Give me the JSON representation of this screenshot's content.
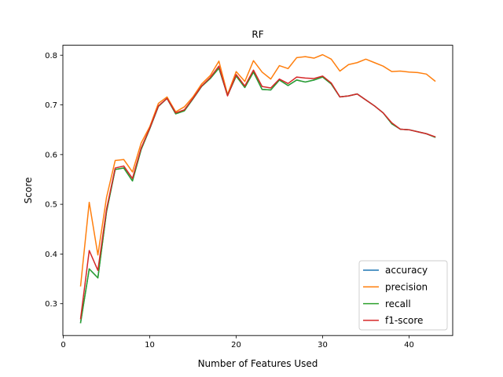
{
  "chart_data": {
    "type": "line",
    "title": "RF",
    "xlabel": "Number of Features Used",
    "ylabel": "Score",
    "xlim": [
      -0.05,
      45.05
    ],
    "ylim": [
      0.236,
      0.82
    ],
    "xticks": [
      0,
      10,
      20,
      30,
      40
    ],
    "yticks": [
      0.3,
      0.4,
      0.5,
      0.6,
      0.7,
      0.8
    ],
    "grid": false,
    "legend_position": "lower-right",
    "x": [
      2,
      3,
      4,
      5,
      6,
      7,
      8,
      9,
      10,
      11,
      12,
      13,
      14,
      15,
      16,
      17,
      18,
      19,
      20,
      21,
      22,
      23,
      24,
      25,
      26,
      27,
      28,
      29,
      30,
      31,
      32,
      33,
      34,
      35,
      36,
      37,
      38,
      39,
      40,
      41,
      42,
      43
    ],
    "series": [
      {
        "name": "accuracy",
        "color": "#1f77b4",
        "values": [
          0.262,
          0.37,
          0.352,
          0.485,
          0.57,
          0.573,
          0.547,
          0.61,
          0.652,
          0.697,
          0.713,
          0.682,
          0.688,
          0.712,
          0.737,
          0.753,
          0.774,
          0.719,
          0.758,
          0.735,
          0.766,
          0.731,
          0.73,
          0.75,
          0.739,
          0.75,
          0.746,
          0.75,
          0.756,
          0.742,
          0.716,
          0.718,
          0.722,
          0.71,
          0.698,
          0.684,
          0.662,
          0.651,
          0.65,
          0.646,
          0.642,
          0.635
        ]
      },
      {
        "name": "precision",
        "color": "#ff7f0e",
        "values": [
          0.336,
          0.504,
          0.398,
          0.514,
          0.588,
          0.59,
          0.565,
          0.623,
          0.656,
          0.703,
          0.716,
          0.686,
          0.696,
          0.716,
          0.742,
          0.759,
          0.788,
          0.721,
          0.767,
          0.747,
          0.789,
          0.766,
          0.752,
          0.779,
          0.773,
          0.795,
          0.797,
          0.794,
          0.801,
          0.792,
          0.768,
          0.781,
          0.785,
          0.792,
          0.785,
          0.778,
          0.767,
          0.768,
          0.766,
          0.765,
          0.762,
          0.748
        ]
      },
      {
        "name": "recall",
        "color": "#2ca02c",
        "values": [
          0.262,
          0.37,
          0.352,
          0.485,
          0.57,
          0.573,
          0.547,
          0.61,
          0.652,
          0.697,
          0.713,
          0.682,
          0.688,
          0.712,
          0.737,
          0.753,
          0.774,
          0.719,
          0.758,
          0.735,
          0.766,
          0.731,
          0.73,
          0.75,
          0.739,
          0.75,
          0.746,
          0.75,
          0.756,
          0.742,
          0.716,
          0.718,
          0.722,
          0.71,
          0.698,
          0.684,
          0.662,
          0.651,
          0.65,
          0.646,
          0.642,
          0.635
        ]
      },
      {
        "name": "f1-score",
        "color": "#d62728",
        "values": [
          0.27,
          0.407,
          0.367,
          0.49,
          0.573,
          0.577,
          0.552,
          0.613,
          0.653,
          0.698,
          0.713,
          0.684,
          0.69,
          0.713,
          0.738,
          0.755,
          0.778,
          0.718,
          0.761,
          0.738,
          0.77,
          0.737,
          0.734,
          0.752,
          0.743,
          0.756,
          0.754,
          0.753,
          0.758,
          0.744,
          0.716,
          0.718,
          0.722,
          0.71,
          0.698,
          0.684,
          0.664,
          0.651,
          0.65,
          0.646,
          0.642,
          0.636
        ]
      }
    ]
  }
}
